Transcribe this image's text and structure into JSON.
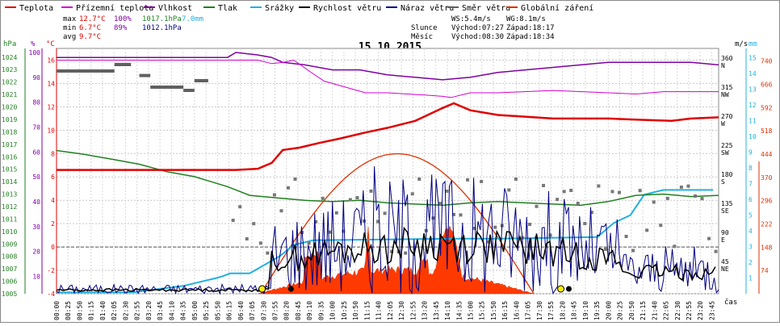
{
  "chart_data": {
    "type": "line",
    "title": "15.10.2015",
    "legend": [
      {
        "name": "Teplota",
        "color": "#e00000"
      },
      {
        "name": "Přízemní teplota",
        "color": "#d000d0"
      },
      {
        "name": "Vlhkost",
        "color": "#8000a0"
      },
      {
        "name": "Tlak",
        "color": "#208020"
      },
      {
        "name": "Srážky",
        "color": "#20b0e0"
      },
      {
        "name": "Rychlost větru",
        "color": "#000000"
      },
      {
        "name": "Náraz větru",
        "color": "#000080"
      },
      {
        "name": "Směr větru",
        "color": "#606060"
      },
      {
        "name": "Globální záření",
        "color": "#e03000"
      }
    ],
    "stats": {
      "max_label": "max",
      "min_label": "min",
      "avg_label": "avg",
      "max_temp": "12.7°C",
      "max_hum": "100%",
      "max_press": "1017.1hPa",
      "rain": "7.0mm",
      "min_temp": "6.7°C",
      "min_hum": "89%",
      "min_press": "1012.1hPa",
      "avg_temp": "9.7°C",
      "ws": "WS:5.4m/s",
      "wg": "WG:8.1m/s",
      "sun_label": "Slunce",
      "sun_rise": "Východ:07:27",
      "sun_set": "Západ:18:17",
      "moon_label": "Měsíc",
      "moon_rise": "Východ:08:30",
      "moon_set": "Západ:18:34"
    },
    "axes": {
      "hpa_label": "hPa",
      "pct_label": "%",
      "c_label": "°C",
      "ms_label": "m/s",
      "mm_label": "mm",
      "xlabel": "čas",
      "hpa_ticks": [
        "1024",
        "1023",
        "1022",
        "1021",
        "1020",
        "1019",
        "1018",
        "1017",
        "1016",
        "1015",
        "1014",
        "1013",
        "1012",
        "1011",
        "1010",
        "1009",
        "1008",
        "1007",
        "1006",
        "1005"
      ],
      "pct_ticks": [
        "100",
        "90",
        "80",
        "70",
        "60",
        "50",
        "40",
        "30",
        "20",
        "10"
      ],
      "c_ticks": [
        "16",
        "14",
        "12",
        "10",
        "8",
        "6",
        "4",
        "2",
        "0",
        "-2",
        "-4"
      ],
      "dir_ticks": [
        {
          "deg": "360",
          "dir": "N"
        },
        {
          "deg": "315",
          "dir": "NW"
        },
        {
          "deg": "270",
          "dir": "W"
        },
        {
          "deg": "225",
          "dir": "SW"
        },
        {
          "deg": "180",
          "dir": "S"
        },
        {
          "deg": "135",
          "dir": "SE"
        },
        {
          "deg": "90",
          "dir": "E"
        },
        {
          "deg": "45",
          "dir": "NE"
        }
      ],
      "ms_ticks": [
        "15",
        "14",
        "13",
        "12",
        "11",
        "10",
        "9",
        "8",
        "7",
        "6",
        "5",
        "4",
        "3",
        "2",
        "1"
      ],
      "rad_ticks": [
        "740",
        "666",
        "592",
        "518",
        "444",
        "370",
        "296",
        "222",
        "148",
        "74"
      ],
      "time_ticks": [
        "00:00",
        "00:25",
        "00:50",
        "01:15",
        "01:40",
        "02:05",
        "02:30",
        "02:55",
        "03:20",
        "03:45",
        "04:10",
        "04:35",
        "05:00",
        "05:25",
        "05:50",
        "06:15",
        "06:40",
        "07:05",
        "07:30",
        "07:55",
        "08:20",
        "08:45",
        "09:10",
        "09:35",
        "10:00",
        "10:25",
        "10:50",
        "11:15",
        "11:40",
        "12:05",
        "12:30",
        "12:55",
        "13:20",
        "13:45",
        "14:10",
        "14:35",
        "15:00",
        "15:25",
        "15:50",
        "16:15",
        "16:40",
        "17:05",
        "17:30",
        "17:55",
        "18:20",
        "18:45",
        "19:10",
        "19:35",
        "20:00",
        "20:25",
        "20:50",
        "21:15",
        "21:40",
        "22:05",
        "22:30",
        "22:55",
        "23:20",
        "23:45"
      ]
    },
    "series": {
      "temperature": [
        [
          0,
          6.6
        ],
        [
          6.5,
          6.6
        ],
        [
          7.3,
          6.7
        ],
        [
          7.8,
          7.2
        ],
        [
          8.2,
          8.3
        ],
        [
          8.8,
          8.5
        ],
        [
          9.5,
          8.9
        ],
        [
          10.3,
          9.3
        ],
        [
          11.2,
          9.8
        ],
        [
          12,
          10.2
        ],
        [
          13,
          10.8
        ],
        [
          14,
          11.9
        ],
        [
          14.4,
          12.3
        ],
        [
          15,
          11.7
        ],
        [
          16,
          11.3
        ],
        [
          18,
          11
        ],
        [
          20,
          11
        ],
        [
          21,
          10.9
        ],
        [
          22.3,
          10.8
        ],
        [
          23,
          11
        ],
        [
          24,
          11.1
        ]
      ],
      "ground_temperature": [
        [
          0,
          16
        ],
        [
          6.5,
          16
        ],
        [
          7.3,
          16
        ],
        [
          7.8,
          15.7
        ],
        [
          8.2,
          15.8
        ],
        [
          8.6,
          16
        ],
        [
          9.2,
          15
        ],
        [
          9.7,
          14.2
        ],
        [
          11.2,
          13.2
        ],
        [
          12,
          13.2
        ],
        [
          13.4,
          13
        ],
        [
          14,
          12.9
        ],
        [
          14.3,
          12.8
        ],
        [
          15,
          13.2
        ],
        [
          16,
          13.2
        ],
        [
          18,
          13.4
        ],
        [
          20,
          13.2
        ],
        [
          21,
          13.1
        ],
        [
          22,
          13.3
        ],
        [
          23,
          13.3
        ],
        [
          24,
          13.3
        ]
      ]
    }
  }
}
